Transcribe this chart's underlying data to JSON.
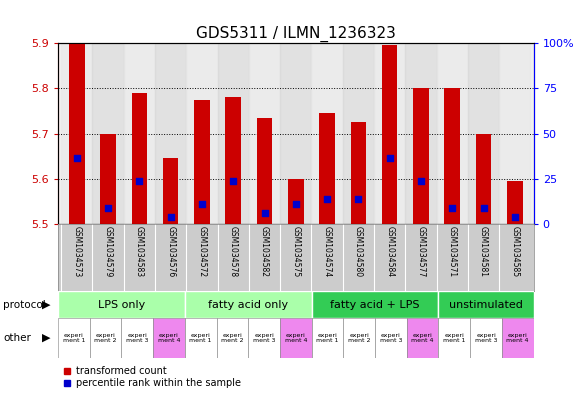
{
  "title": "GDS5311 / ILMN_1236323",
  "samples": [
    "GSM1034573",
    "GSM1034579",
    "GSM1034583",
    "GSM1034576",
    "GSM1034572",
    "GSM1034578",
    "GSM1034582",
    "GSM1034575",
    "GSM1034574",
    "GSM1034580",
    "GSM1034584",
    "GSM1034577",
    "GSM1034571",
    "GSM1034581",
    "GSM1034585"
  ],
  "bar_values": [
    5.9,
    5.7,
    5.79,
    5.645,
    5.775,
    5.78,
    5.735,
    5.6,
    5.745,
    5.725,
    5.895,
    5.8,
    5.8,
    5.7,
    5.595
  ],
  "blue_dot_values": [
    5.645,
    5.535,
    5.595,
    5.515,
    5.545,
    5.595,
    5.525,
    5.545,
    5.555,
    5.555,
    5.645,
    5.595,
    5.535,
    5.535,
    5.515
  ],
  "ylim": [
    5.5,
    5.9
  ],
  "yticks": [
    5.5,
    5.6,
    5.7,
    5.8,
    5.9
  ],
  "y2ticks": [
    0,
    25,
    50,
    75,
    100
  ],
  "y2labels": [
    "0",
    "25",
    "50",
    "75",
    "100%"
  ],
  "bar_color": "#cc0000",
  "dot_color": "#0000cc",
  "bar_width": 0.5,
  "group_info": [
    {
      "start": 0,
      "end": 4,
      "label": "LPS only",
      "color": "#aaffaa"
    },
    {
      "start": 4,
      "end": 8,
      "label": "fatty acid only",
      "color": "#aaffaa"
    },
    {
      "start": 8,
      "end": 12,
      "label": "fatty acid + LPS",
      "color": "#33cc55"
    },
    {
      "start": 12,
      "end": 15,
      "label": "unstimulated",
      "color": "#33cc55"
    }
  ],
  "other_row": [
    {
      "label": "experi\nment 1",
      "color": "#ffffff"
    },
    {
      "label": "experi\nment 2",
      "color": "#ffffff"
    },
    {
      "label": "experi\nment 3",
      "color": "#ffffff"
    },
    {
      "label": "experi\nment 4",
      "color": "#ee88ee"
    },
    {
      "label": "experi\nment 1",
      "color": "#ffffff"
    },
    {
      "label": "experi\nment 2",
      "color": "#ffffff"
    },
    {
      "label": "experi\nment 3",
      "color": "#ffffff"
    },
    {
      "label": "experi\nment 4",
      "color": "#ee88ee"
    },
    {
      "label": "experi\nment 1",
      "color": "#ffffff"
    },
    {
      "label": "experi\nment 2",
      "color": "#ffffff"
    },
    {
      "label": "experi\nment 3",
      "color": "#ffffff"
    },
    {
      "label": "experi\nment 4",
      "color": "#ee88ee"
    },
    {
      "label": "experi\nment 1",
      "color": "#ffffff"
    },
    {
      "label": "experi\nment 3",
      "color": "#ffffff"
    },
    {
      "label": "experi\nment 4",
      "color": "#ee88ee"
    }
  ],
  "background_color": "#ffffff",
  "sample_box_color": "#cccccc",
  "left_label_protocol": "protocol",
  "left_label_other": "other",
  "legend_red": "transformed count",
  "legend_blue": "percentile rank within the sample",
  "title_fontsize": 11
}
